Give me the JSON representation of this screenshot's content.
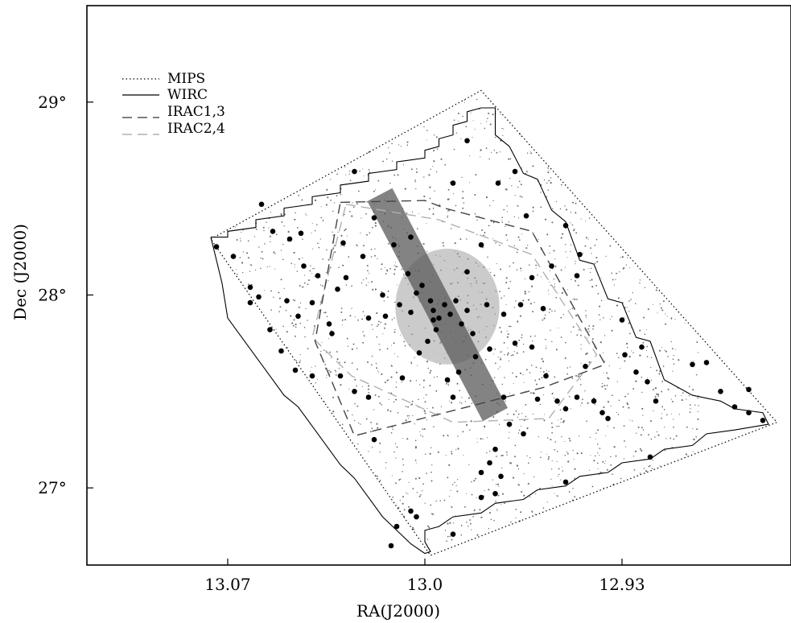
{
  "chart_data": {
    "type": "scatter",
    "xlabel": "RA(J2000)",
    "ylabel": "Dec  (J2000)",
    "xlim": [
      13.12,
      12.87
    ],
    "ylim": [
      26.6,
      29.5
    ],
    "x_ticks": [
      {
        "value": 13.07,
        "label": "13.07"
      },
      {
        "value": 13.0,
        "label": "13.0"
      },
      {
        "value": 12.93,
        "label": "12.93"
      }
    ],
    "y_ticks": [
      {
        "value": 29,
        "label": "29°"
      },
      {
        "value": 28,
        "label": "28°"
      },
      {
        "value": 27,
        "label": "27°"
      }
    ],
    "legend": {
      "placement": "top-left",
      "entries": [
        {
          "label": "MIPS",
          "style": "dotted",
          "color": "#000000"
        },
        {
          "label": "WIRC",
          "style": "solid",
          "color": "#000000"
        },
        {
          "label": "IRAC1,3",
          "style": "dashed",
          "color": "#555555"
        },
        {
          "label": "IRAC2,4",
          "style": "dashed",
          "color": "#b0b0b0"
        }
      ]
    },
    "regions": {
      "mips": [
        [
          13.076,
          28.29
        ],
        [
          12.98,
          29.06
        ],
        [
          12.875,
          27.34
        ],
        [
          12.998,
          26.65
        ]
      ],
      "irac13": [
        [
          13.03,
          28.48
        ],
        [
          13.0,
          28.49
        ],
        [
          12.993,
          28.45
        ],
        [
          12.962,
          28.33
        ],
        [
          12.936,
          27.64
        ],
        [
          12.958,
          27.52
        ],
        [
          13.025,
          27.27
        ],
        [
          13.039,
          27.76
        ]
      ],
      "irac24": [
        [
          13.028,
          28.47
        ],
        [
          12.995,
          28.39
        ],
        [
          12.962,
          28.21
        ],
        [
          12.939,
          27.69
        ],
        [
          12.956,
          27.36
        ],
        [
          12.99,
          27.34
        ],
        [
          13.026,
          27.58
        ],
        [
          13.04,
          27.78
        ]
      ],
      "circle": {
        "center": [
          12.992,
          27.94
        ],
        "radius_dec": 0.3
      },
      "slit": {
        "start": [
          13.016,
          28.52
        ],
        "end": [
          12.975,
          27.38
        ],
        "width_ra": 0.005
      }
    },
    "wirc_outline": [
      [
        13.076,
        28.3
      ],
      [
        13.07,
        28.3
      ],
      [
        13.07,
        28.33
      ],
      [
        13.06,
        28.35
      ],
      [
        13.06,
        28.39
      ],
      [
        13.05,
        28.41
      ],
      [
        13.05,
        28.45
      ],
      [
        13.04,
        28.47
      ],
      [
        13.04,
        28.51
      ],
      [
        13.03,
        28.53
      ],
      [
        13.03,
        28.57
      ],
      [
        13.02,
        28.59
      ],
      [
        13.02,
        28.63
      ],
      [
        13.01,
        28.65
      ],
      [
        13.01,
        28.69
      ],
      [
        13.0,
        28.71
      ],
      [
        13.0,
        28.75
      ],
      [
        12.995,
        28.77
      ],
      [
        12.995,
        28.81
      ],
      [
        12.99,
        28.83
      ],
      [
        12.99,
        28.88
      ],
      [
        12.985,
        28.9
      ],
      [
        12.985,
        28.95
      ],
      [
        12.98,
        28.97
      ],
      [
        12.975,
        28.97
      ],
      [
        12.975,
        28.83
      ],
      [
        12.97,
        28.77
      ],
      [
        12.965,
        28.63
      ],
      [
        12.96,
        28.6
      ],
      [
        12.955,
        28.44
      ],
      [
        12.95,
        28.38
      ],
      [
        12.945,
        28.18
      ],
      [
        12.94,
        28.16
      ],
      [
        12.935,
        27.98
      ],
      [
        12.93,
        27.96
      ],
      [
        12.925,
        27.78
      ],
      [
        12.92,
        27.76
      ],
      [
        12.915,
        27.56
      ],
      [
        12.91,
        27.52
      ],
      [
        12.905,
        27.48
      ],
      [
        12.895,
        27.45
      ],
      [
        12.89,
        27.41
      ],
      [
        12.88,
        27.39
      ],
      [
        12.878,
        27.33
      ],
      [
        12.89,
        27.3
      ],
      [
        12.9,
        27.28
      ],
      [
        12.905,
        27.22
      ],
      [
        12.915,
        27.2
      ],
      [
        12.92,
        27.15
      ],
      [
        12.93,
        27.13
      ],
      [
        12.935,
        27.08
      ],
      [
        12.945,
        27.06
      ],
      [
        12.95,
        27.01
      ],
      [
        12.96,
        26.99
      ],
      [
        12.965,
        26.94
      ],
      [
        12.975,
        26.92
      ],
      [
        12.98,
        26.87
      ],
      [
        12.99,
        26.85
      ],
      [
        12.995,
        26.8
      ],
      [
        13.0,
        26.78
      ],
      [
        13.0,
        26.72
      ],
      [
        12.998,
        26.67
      ],
      [
        13.0,
        26.66
      ],
      [
        13.005,
        26.71
      ],
      [
        13.01,
        26.78
      ],
      [
        13.015,
        26.85
      ],
      [
        13.02,
        26.95
      ],
      [
        13.025,
        27.05
      ],
      [
        13.03,
        27.12
      ],
      [
        13.035,
        27.22
      ],
      [
        13.04,
        27.32
      ],
      [
        13.045,
        27.42
      ],
      [
        13.05,
        27.48
      ],
      [
        13.055,
        27.58
      ],
      [
        13.06,
        27.68
      ],
      [
        13.065,
        27.78
      ],
      [
        13.07,
        27.88
      ],
      [
        13.072,
        28.06
      ],
      [
        13.074,
        28.18
      ],
      [
        13.076,
        28.3
      ]
    ],
    "members": [
      {
        "x": 13.074,
        "y": 28.25
      },
      {
        "x": 13.068,
        "y": 28.2
      },
      {
        "x": 13.062,
        "y": 28.04
      },
      {
        "x": 13.058,
        "y": 28.47
      },
      {
        "x": 13.054,
        "y": 28.33
      },
      {
        "x": 13.048,
        "y": 28.29
      },
      {
        "x": 13.044,
        "y": 28.32
      },
      {
        "x": 13.055,
        "y": 27.82
      },
      {
        "x": 13.059,
        "y": 27.99
      },
      {
        "x": 13.049,
        "y": 27.97
      },
      {
        "x": 13.043,
        "y": 28.15
      },
      {
        "x": 13.038,
        "y": 28.1
      },
      {
        "x": 13.04,
        "y": 27.96
      },
      {
        "x": 13.045,
        "y": 27.89
      },
      {
        "x": 13.051,
        "y": 27.71
      },
      {
        "x": 13.046,
        "y": 27.61
      },
      {
        "x": 13.04,
        "y": 27.58
      },
      {
        "x": 13.033,
        "y": 27.8
      },
      {
        "x": 13.031,
        "y": 28.03
      },
      {
        "x": 13.029,
        "y": 28.27
      },
      {
        "x": 13.025,
        "y": 28.64
      },
      {
        "x": 13.022,
        "y": 28.2
      },
      {
        "x": 13.018,
        "y": 28.4
      },
      {
        "x": 13.02,
        "y": 27.88
      },
      {
        "x": 13.014,
        "y": 27.89
      },
      {
        "x": 13.011,
        "y": 28.26
      },
      {
        "x": 13.005,
        "y": 28.3
      },
      {
        "x": 13.009,
        "y": 27.95
      },
      {
        "x": 13.006,
        "y": 28.11
      },
      {
        "x": 13.003,
        "y": 28.01
      },
      {
        "x": 13.001,
        "y": 28.05
      },
      {
        "x": 12.998,
        "y": 27.97
      },
      {
        "x": 12.997,
        "y": 27.92
      },
      {
        "x": 12.995,
        "y": 27.88
      },
      {
        "x": 12.993,
        "y": 27.95
      },
      {
        "x": 12.991,
        "y": 27.9
      },
      {
        "x": 12.996,
        "y": 27.82
      },
      {
        "x": 12.999,
        "y": 27.76
      },
      {
        "x": 13.002,
        "y": 27.7
      },
      {
        "x": 12.989,
        "y": 27.97
      },
      {
        "x": 12.987,
        "y": 27.85
      },
      {
        "x": 12.985,
        "y": 27.92
      },
      {
        "x": 12.983,
        "y": 27.8
      },
      {
        "x": 12.985,
        "y": 28.12
      },
      {
        "x": 12.98,
        "y": 28.26
      },
      {
        "x": 12.978,
        "y": 27.95
      },
      {
        "x": 12.977,
        "y": 27.72
      },
      {
        "x": 12.982,
        "y": 27.68
      },
      {
        "x": 12.988,
        "y": 27.6
      },
      {
        "x": 12.992,
        "y": 27.56
      },
      {
        "x": 12.99,
        "y": 28.58
      },
      {
        "x": 12.985,
        "y": 28.8
      },
      {
        "x": 12.974,
        "y": 28.58
      },
      {
        "x": 12.968,
        "y": 28.64
      },
      {
        "x": 12.964,
        "y": 28.41
      },
      {
        "x": 12.962,
        "y": 28.09
      },
      {
        "x": 12.958,
        "y": 27.93
      },
      {
        "x": 12.955,
        "y": 28.15
      },
      {
        "x": 12.95,
        "y": 28.36
      },
      {
        "x": 12.946,
        "y": 28.1
      },
      {
        "x": 12.966,
        "y": 27.95
      },
      {
        "x": 12.962,
        "y": 27.73
      },
      {
        "x": 12.957,
        "y": 27.58
      },
      {
        "x": 12.953,
        "y": 27.45
      },
      {
        "x": 12.95,
        "y": 27.41
      },
      {
        "x": 12.946,
        "y": 27.47
      },
      {
        "x": 12.943,
        "y": 27.63
      },
      {
        "x": 12.94,
        "y": 27.45
      },
      {
        "x": 12.935,
        "y": 27.36
      },
      {
        "x": 12.929,
        "y": 27.69
      },
      {
        "x": 12.925,
        "y": 27.6
      },
      {
        "x": 12.921,
        "y": 27.55
      },
      {
        "x": 12.918,
        "y": 27.45
      },
      {
        "x": 12.905,
        "y": 27.64
      },
      {
        "x": 12.9,
        "y": 27.65
      },
      {
        "x": 12.895,
        "y": 27.5
      },
      {
        "x": 12.89,
        "y": 27.42
      },
      {
        "x": 12.885,
        "y": 27.51
      },
      {
        "x": 12.885,
        "y": 27.39
      },
      {
        "x": 12.88,
        "y": 27.35
      },
      {
        "x": 12.945,
        "y": 28.21
      },
      {
        "x": 12.93,
        "y": 27.87
      },
      {
        "x": 12.923,
        "y": 27.73
      },
      {
        "x": 12.92,
        "y": 27.16
      },
      {
        "x": 12.965,
        "y": 27.28
      },
      {
        "x": 12.97,
        "y": 27.33
      },
      {
        "x": 12.975,
        "y": 27.2
      },
      {
        "x": 12.977,
        "y": 27.13
      },
      {
        "x": 12.98,
        "y": 27.08
      },
      {
        "x": 12.975,
        "y": 26.97
      },
      {
        "x": 12.98,
        "y": 26.95
      },
      {
        "x": 12.973,
        "y": 27.06
      },
      {
        "x": 12.972,
        "y": 27.47
      },
      {
        "x": 12.95,
        "y": 27.03
      },
      {
        "x": 12.99,
        "y": 26.76
      },
      {
        "x": 13.005,
        "y": 26.88
      },
      {
        "x": 13.003,
        "y": 26.85
      },
      {
        "x": 13.01,
        "y": 26.8
      },
      {
        "x": 13.012,
        "y": 26.7
      },
      {
        "x": 13.018,
        "y": 27.25
      },
      {
        "x": 13.02,
        "y": 27.47
      },
      {
        "x": 13.025,
        "y": 27.5
      },
      {
        "x": 13.03,
        "y": 27.58
      },
      {
        "x": 13.008,
        "y": 27.57
      },
      {
        "x": 12.99,
        "y": 27.47
      },
      {
        "x": 13.034,
        "y": 27.85
      },
      {
        "x": 13.062,
        "y": 27.96
      },
      {
        "x": 13.028,
        "y": 28.09
      },
      {
        "x": 13.015,
        "y": 28.0
      },
      {
        "x": 13.005,
        "y": 27.91
      },
      {
        "x": 12.997,
        "y": 27.87
      },
      {
        "x": 12.972,
        "y": 27.9
      },
      {
        "x": 12.968,
        "y": 27.75
      },
      {
        "x": 12.96,
        "y": 27.46
      },
      {
        "x": 12.937,
        "y": 27.39
      }
    ]
  }
}
